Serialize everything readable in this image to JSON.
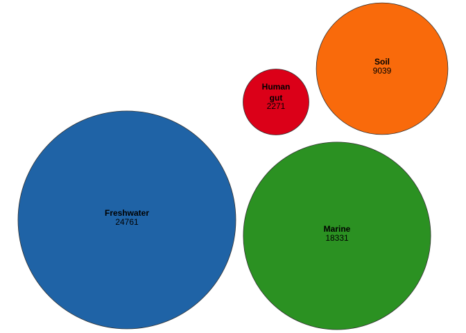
{
  "chart_data": {
    "type": "bubble",
    "title": "",
    "items": [
      {
        "name": "Freshwater",
        "name_lines": [
          "Freshwater"
        ],
        "value": 24761,
        "color": "#1f63a6"
      },
      {
        "name": "Marine",
        "name_lines": [
          "Marine"
        ],
        "value": 18331,
        "color": "#2b9122"
      },
      {
        "name": "Soil",
        "name_lines": [
          "Soil"
        ],
        "value": 9039,
        "color": "#f96a0b"
      },
      {
        "name": "Human gut",
        "name_lines": [
          "Human",
          "gut"
        ],
        "value": 2271,
        "color": "#db0018"
      }
    ]
  }
}
